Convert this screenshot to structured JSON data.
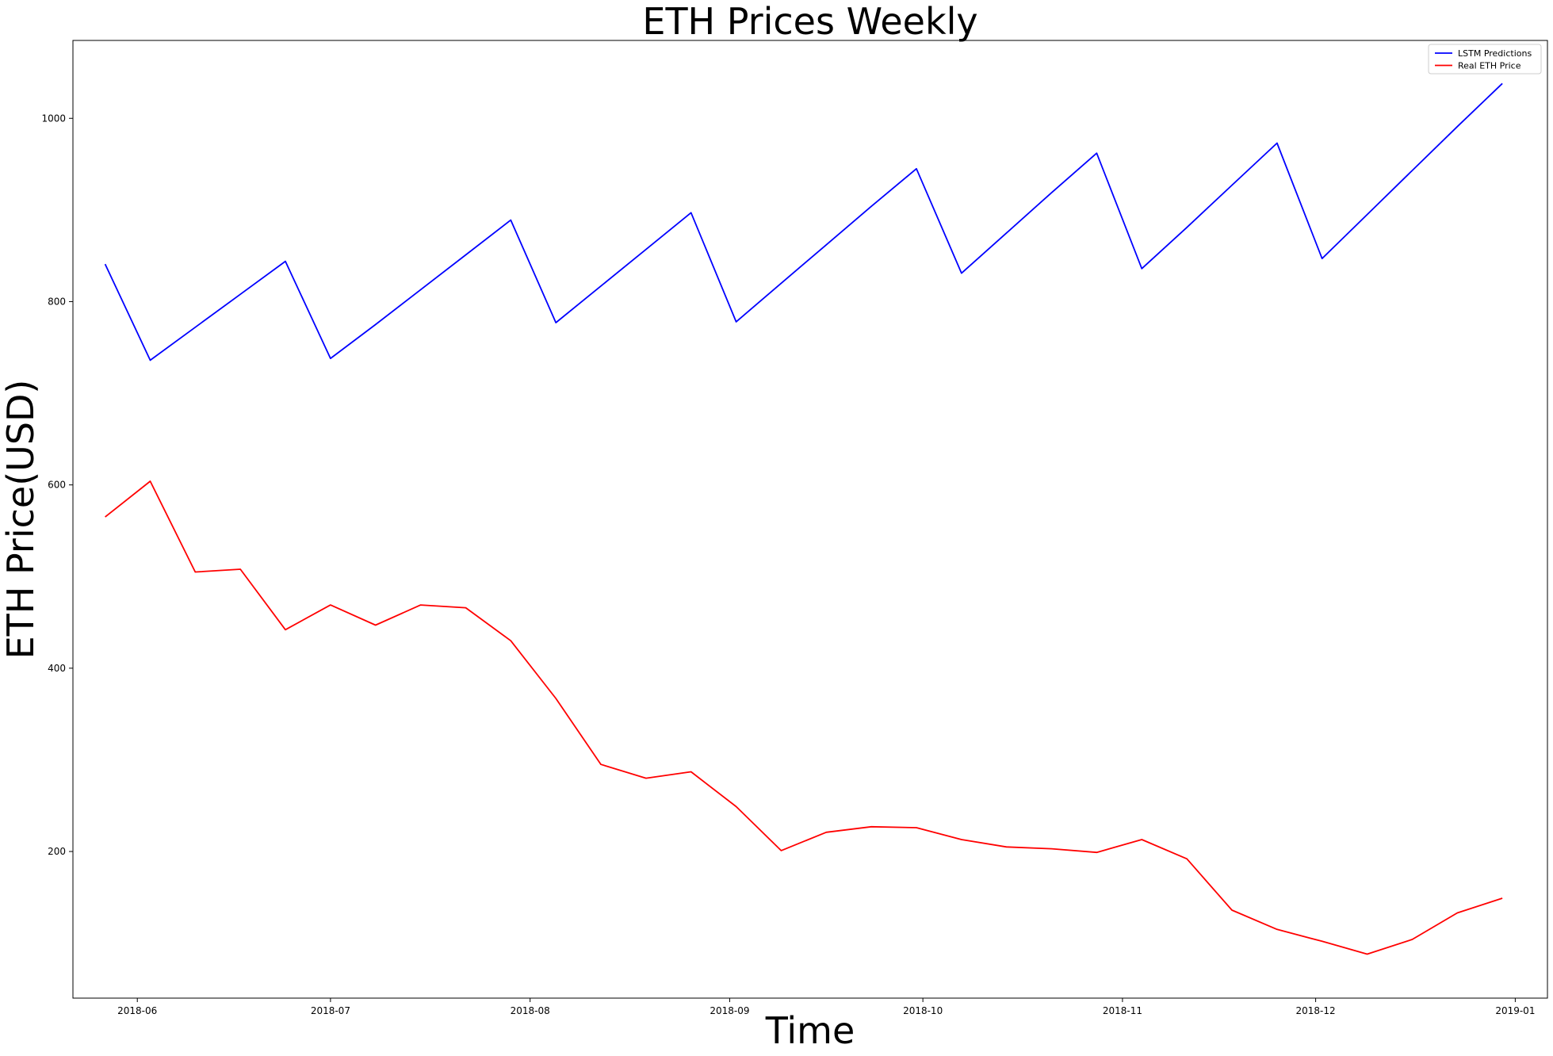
{
  "chart_data": {
    "type": "line",
    "title": "ETH Prices Weekly",
    "xlabel": "Time",
    "ylabel": "ETH Price(USD)",
    "xlim": [
      "2018-05-22",
      "2019-01-06"
    ],
    "ylim": [
      40,
      1085
    ],
    "x_ticks": [
      "2018-06-01",
      "2018-07-01",
      "2018-08-01",
      "2018-09-01",
      "2018-10-01",
      "2018-11-01",
      "2018-12-01",
      "2019-01-01"
    ],
    "x_tick_labels": [
      "2018-06",
      "2018-07",
      "2018-08",
      "2018-09",
      "2018-10",
      "2018-11",
      "2018-12",
      "2019-01"
    ],
    "y_ticks": [
      200,
      400,
      600,
      800,
      1000
    ],
    "y_tick_labels": [
      "200",
      "400",
      "600",
      "800",
      "1000"
    ],
    "grid": false,
    "legend_position": "top-right",
    "x": [
      "2018-05-27",
      "2018-06-03",
      "2018-06-10",
      "2018-06-17",
      "2018-06-24",
      "2018-07-01",
      "2018-07-08",
      "2018-07-15",
      "2018-07-22",
      "2018-07-29",
      "2018-08-05",
      "2018-08-12",
      "2018-08-19",
      "2018-08-26",
      "2018-09-02",
      "2018-09-09",
      "2018-09-16",
      "2018-09-23",
      "2018-09-30",
      "2018-10-07",
      "2018-10-14",
      "2018-10-21",
      "2018-10-28",
      "2018-11-04",
      "2018-11-11",
      "2018-11-18",
      "2018-11-25",
      "2018-12-02",
      "2018-12-09",
      "2018-12-16",
      "2018-12-23",
      "2018-12-30"
    ],
    "series": [
      {
        "name": "LSTM Predictions",
        "color": "#0000ff",
        "values": [
          841,
          736,
          772,
          808,
          844,
          738,
          775,
          813,
          851,
          889,
          777,
          817,
          857,
          897,
          778,
          820,
          862,
          904,
          945,
          831,
          875,
          919,
          962,
          836,
          881,
          927,
          973,
          847,
          895,
          943,
          991,
          1038
        ]
      },
      {
        "name": "Real ETH Price",
        "color": "#ff0000",
        "values": [
          565,
          604,
          505,
          508,
          442,
          469,
          447,
          469,
          466,
          430,
          367,
          295,
          280,
          287,
          249,
          201,
          221,
          227,
          226,
          213,
          205,
          203,
          199,
          213,
          192,
          136,
          115,
          102,
          88,
          104,
          133,
          149
        ]
      }
    ]
  }
}
